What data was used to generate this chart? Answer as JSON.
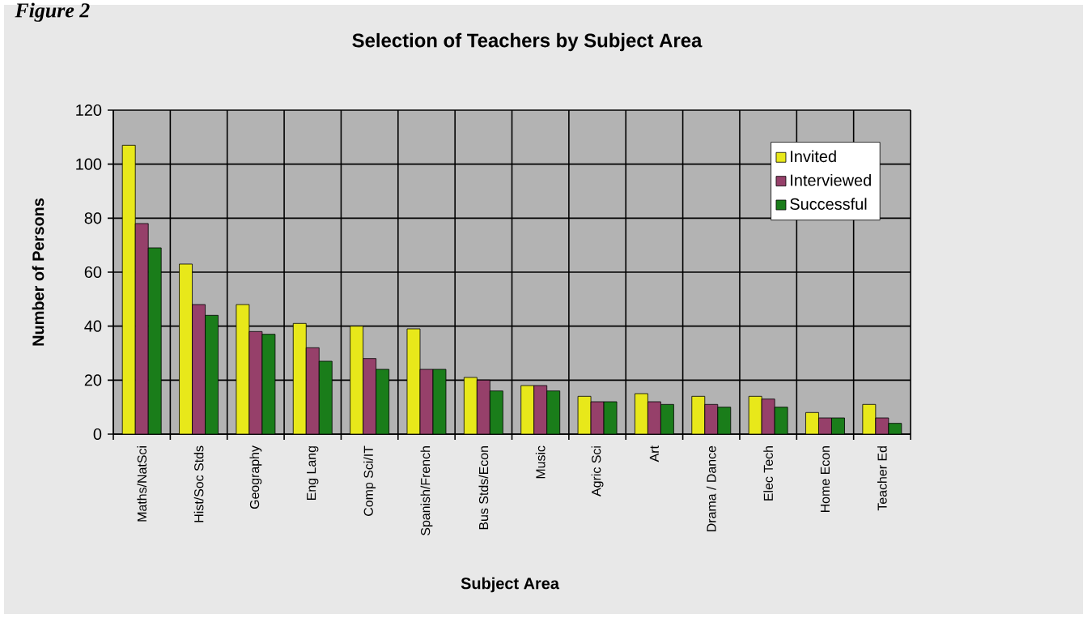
{
  "chart_data": {
    "type": "bar",
    "title": "Selection of Teachers by Subject Area",
    "xlabel": "Subject Area",
    "ylabel": "Number of Persons",
    "annotations": [
      "Figure 2"
    ],
    "categories": [
      "Maths/NatSci",
      "Hist/Soc Stds",
      "Geography",
      "Eng Lang",
      "Comp Sci/IT",
      "Spanish/French",
      "Bus Stds/Econ",
      "Music",
      "Agric Sci",
      "Art",
      "Drama / Dance",
      "Elec Tech",
      "Home Econ",
      "Teacher Ed"
    ],
    "series": [
      {
        "name": "Invited",
        "color": "#e8e81a",
        "values": [
          107,
          63,
          48,
          41,
          40,
          39,
          21,
          18,
          14,
          15,
          14,
          14,
          8,
          11
        ]
      },
      {
        "name": "Interviewed",
        "color": "#96406a",
        "values": [
          78,
          48,
          38,
          32,
          28,
          24,
          20,
          18,
          12,
          12,
          11,
          13,
          6,
          6
        ]
      },
      {
        "name": "Successful",
        "color": "#1a7d1a",
        "values": [
          69,
          44,
          37,
          27,
          24,
          24,
          16,
          16,
          12,
          11,
          10,
          10,
          6,
          4
        ]
      }
    ],
    "ylim": [
      0,
      120
    ],
    "yticks": [
      0,
      20,
      40,
      60,
      80,
      100,
      120
    ],
    "grid": true,
    "legend": "top right"
  }
}
